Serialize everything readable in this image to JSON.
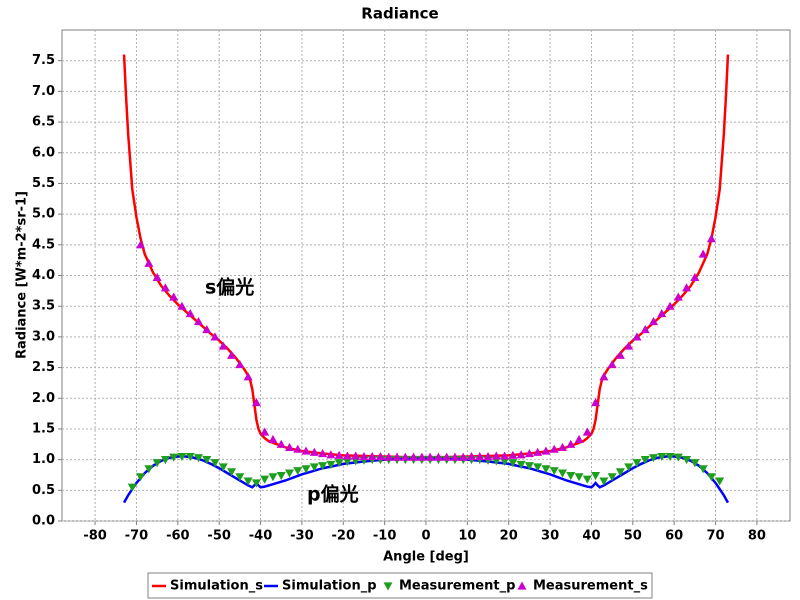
{
  "chart_data": {
    "type": "line",
    "title": "Radiance",
    "xlabel": "Angle [deg]",
    "ylabel": "Radiance [W*m-2*sr-1]",
    "xlim": [
      -88,
      88
    ],
    "ylim": [
      0,
      8
    ],
    "xticks": [
      -80,
      -70,
      -60,
      -50,
      -40,
      -30,
      -20,
      -10,
      0,
      10,
      20,
      30,
      40,
      50,
      60,
      70,
      80
    ],
    "yticks": [
      {
        "value": 0,
        "label": "0.0"
      },
      0.5,
      {
        "value": 1,
        "label": "1.0"
      },
      1.5,
      {
        "value": 2,
        "label": "2.0"
      },
      2.5,
      {
        "value": 3,
        "label": "3.0"
      },
      3.5,
      {
        "value": 4,
        "label": "4.0"
      },
      4.5,
      {
        "value": 5,
        "label": "5.0"
      },
      5.5,
      {
        "value": 6,
        "label": "6.0"
      },
      6.5,
      {
        "value": 7,
        "label": "7.0"
      },
      7.5
    ],
    "grid": true,
    "legend": "bottom",
    "annotations": [
      "s偏光",
      "p偏光"
    ],
    "series": [
      {
        "name": "Simulation_s",
        "color": "#ff0000",
        "style": "line",
        "x": [
          -73,
          -72.5,
          -72,
          -71,
          -70,
          -69,
          -68,
          -66,
          -64,
          -62,
          -60,
          -58,
          -56,
          -54,
          -52,
          -50,
          -48,
          -46,
          -44,
          -43,
          -42.5,
          -42,
          -41.7,
          -41.4,
          -41,
          -40.5,
          -40,
          -39,
          -38,
          -36,
          -34,
          -32,
          -30,
          -25,
          -20,
          -15,
          -10,
          -5,
          0,
          5,
          10,
          15,
          20,
          25,
          30,
          32,
          34,
          36,
          38,
          39,
          40,
          40.5,
          41,
          41.4,
          41.7,
          42,
          42.5,
          43,
          44,
          46,
          48,
          50,
          52,
          54,
          56,
          58,
          60,
          62,
          64,
          66,
          68,
          69,
          70,
          71,
          72,
          72.5,
          73
        ],
        "values": [
          7.6,
          6.9,
          6.3,
          5.4,
          4.95,
          4.6,
          4.35,
          4.05,
          3.83,
          3.67,
          3.53,
          3.41,
          3.29,
          3.17,
          3.05,
          2.94,
          2.81,
          2.66,
          2.48,
          2.37,
          2.29,
          2.15,
          2.0,
          1.85,
          1.65,
          1.5,
          1.42,
          1.35,
          1.3,
          1.25,
          1.2,
          1.17,
          1.14,
          1.1,
          1.07,
          1.06,
          1.05,
          1.04,
          1.04,
          1.04,
          1.05,
          1.06,
          1.07,
          1.1,
          1.14,
          1.17,
          1.2,
          1.25,
          1.3,
          1.35,
          1.42,
          1.5,
          1.65,
          1.85,
          2.0,
          2.15,
          2.29,
          2.37,
          2.48,
          2.66,
          2.81,
          2.94,
          3.05,
          3.17,
          3.29,
          3.41,
          3.53,
          3.67,
          3.83,
          4.05,
          4.35,
          4.6,
          4.95,
          5.4,
          6.3,
          6.9,
          7.6
        ]
      },
      {
        "name": "Simulation_p",
        "color": "#0000ff",
        "style": "line",
        "x": [
          -73,
          -72,
          -71,
          -70,
          -68,
          -66,
          -64,
          -62,
          -60,
          -58,
          -56,
          -54,
          -52,
          -50,
          -48,
          -46,
          -44,
          -43,
          -42,
          -41.5,
          -41,
          -40.5,
          -40,
          -39,
          -38,
          -36,
          -34,
          -32,
          -30,
          -28,
          -25,
          -22,
          -20,
          -15,
          -10,
          -5,
          0,
          5,
          10,
          15,
          20,
          22,
          25,
          28,
          30,
          32,
          34,
          36,
          38,
          39,
          40,
          40.5,
          41,
          41.5,
          42,
          43,
          44,
          46,
          48,
          50,
          52,
          54,
          56,
          58,
          60,
          62,
          64,
          66,
          68,
          70,
          71,
          72,
          73
        ],
        "values": [
          0.3,
          0.42,
          0.52,
          0.62,
          0.78,
          0.9,
          0.98,
          1.03,
          1.05,
          1.05,
          1.03,
          0.99,
          0.93,
          0.86,
          0.78,
          0.7,
          0.62,
          0.58,
          0.55,
          0.58,
          0.62,
          0.58,
          0.55,
          0.56,
          0.58,
          0.62,
          0.66,
          0.71,
          0.76,
          0.8,
          0.86,
          0.9,
          0.93,
          0.97,
          1.0,
          1.01,
          1.02,
          1.01,
          1.0,
          0.97,
          0.93,
          0.9,
          0.86,
          0.8,
          0.76,
          0.71,
          0.66,
          0.62,
          0.58,
          0.56,
          0.55,
          0.58,
          0.62,
          0.58,
          0.55,
          0.58,
          0.62,
          0.7,
          0.78,
          0.86,
          0.93,
          0.99,
          1.03,
          1.05,
          1.05,
          1.03,
          0.98,
          0.9,
          0.78,
          0.62,
          0.52,
          0.42,
          0.3
        ]
      },
      {
        "name": "Measurement_p",
        "color": "#1e9e1e",
        "style": "triangle-down",
        "x": [
          -71,
          -69,
          -67,
          -65,
          -63,
          -61,
          -59,
          -57,
          -55,
          -53,
          -51,
          -49,
          -47,
          -45,
          -43,
          -41,
          -39,
          -37,
          -35,
          -33,
          -31,
          -29,
          -27,
          -25,
          -23,
          -21,
          -19,
          -17,
          -15,
          -13,
          -11,
          -9,
          -7,
          -5,
          -3,
          -1,
          1,
          3,
          5,
          7,
          9,
          11,
          13,
          15,
          17,
          19,
          21,
          23,
          25,
          27,
          29,
          31,
          33,
          35,
          37,
          39,
          41,
          43,
          45,
          47,
          49,
          51,
          53,
          55,
          57,
          59,
          61,
          63,
          65,
          67,
          69,
          71
        ],
        "values": [
          0.55,
          0.72,
          0.85,
          0.95,
          1.0,
          1.04,
          1.05,
          1.05,
          1.03,
          1.0,
          0.95,
          0.88,
          0.8,
          0.72,
          0.65,
          0.62,
          0.68,
          0.72,
          0.74,
          0.78,
          0.82,
          0.85,
          0.88,
          0.9,
          0.92,
          0.95,
          0.97,
          0.98,
          0.99,
          1.0,
          1.0,
          1.0,
          1.0,
          1.0,
          1.0,
          1.0,
          1.0,
          1.0,
          1.0,
          1.0,
          1.0,
          1.0,
          1.0,
          0.99,
          0.98,
          0.97,
          0.95,
          0.92,
          0.9,
          0.88,
          0.85,
          0.82,
          0.78,
          0.74,
          0.72,
          0.68,
          0.74,
          0.65,
          0.72,
          0.8,
          0.88,
          0.95,
          1.0,
          1.03,
          1.05,
          1.05,
          1.04,
          1.0,
          0.95,
          0.85,
          0.72,
          0.65
        ]
      },
      {
        "name": "Measurement_s",
        "color": "#cc00cc",
        "style": "triangle-up",
        "x": [
          -69,
          -67,
          -65,
          -63,
          -61,
          -59,
          -57,
          -55,
          -53,
          -51,
          -49,
          -47,
          -45,
          -43,
          -41,
          -39,
          -37,
          -35,
          -33,
          -31,
          -29,
          -27,
          -25,
          -23,
          -21,
          -19,
          -17,
          -15,
          -13,
          -11,
          -9,
          -7,
          -5,
          -3,
          -1,
          1,
          3,
          5,
          7,
          9,
          11,
          13,
          15,
          17,
          19,
          21,
          23,
          25,
          27,
          29,
          31,
          33,
          35,
          37,
          39,
          41,
          43,
          45,
          47,
          49,
          51,
          53,
          55,
          57,
          59,
          61,
          63,
          65,
          67,
          69
        ],
        "values": [
          4.5,
          4.2,
          3.97,
          3.8,
          3.65,
          3.5,
          3.38,
          3.25,
          3.12,
          3.0,
          2.85,
          2.7,
          2.55,
          2.35,
          1.93,
          1.45,
          1.33,
          1.25,
          1.2,
          1.17,
          1.14,
          1.12,
          1.1,
          1.08,
          1.07,
          1.06,
          1.06,
          1.05,
          1.05,
          1.05,
          1.04,
          1.04,
          1.04,
          1.04,
          1.04,
          1.04,
          1.04,
          1.04,
          1.04,
          1.04,
          1.05,
          1.05,
          1.05,
          1.06,
          1.06,
          1.07,
          1.08,
          1.1,
          1.12,
          1.14,
          1.17,
          1.2,
          1.25,
          1.33,
          1.45,
          1.93,
          2.35,
          2.55,
          2.7,
          2.85,
          3.0,
          3.12,
          3.25,
          3.38,
          3.5,
          3.65,
          3.8,
          3.97,
          4.35,
          4.6
        ]
      }
    ]
  }
}
